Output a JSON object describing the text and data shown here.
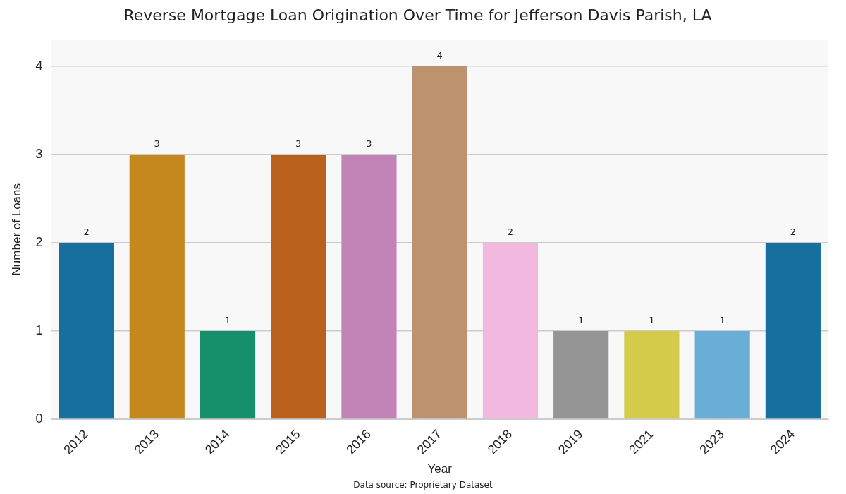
{
  "chart_data": {
    "type": "bar",
    "title": "Reverse Mortgage Loan Origination Over Time for Jefferson Davis Parish, LA",
    "xlabel": "Year",
    "ylabel": "Number of Loans",
    "categories": [
      "2012",
      "2013",
      "2014",
      "2015",
      "2016",
      "2017",
      "2018",
      "2019",
      "2021",
      "2023",
      "2024"
    ],
    "values": [
      2,
      3,
      1,
      3,
      3,
      4,
      2,
      1,
      1,
      1,
      2
    ],
    "colors": [
      "#176fa0",
      "#c4881e",
      "#168f6b",
      "#b8601c",
      "#c283b7",
      "#bd926f",
      "#f1b8e0",
      "#959595",
      "#d5cb4b",
      "#68aed6",
      "#176fa0"
    ],
    "ylim": [
      0,
      4.3
    ],
    "yticks": [
      0,
      1,
      2,
      3,
      4
    ],
    "grid": "y",
    "data_labels": true,
    "legend": false,
    "annotations": [
      "Data source: Proprietary Dataset"
    ]
  }
}
